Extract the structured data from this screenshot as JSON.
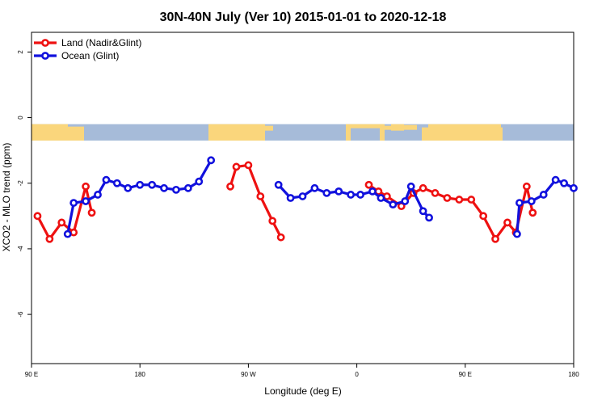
{
  "chart_data": {
    "type": "line",
    "title": "30N-40N July (Ver 10)   2015-01-01 to 2020-12-18",
    "xlabel": "Longitude (deg E)",
    "ylabel": "XCO2 - MLO trend (ppm)",
    "xlim": [
      90,
      540
    ],
    "ylim": [
      -7.5,
      2.6
    ],
    "x_ticks": [
      90,
      180,
      270,
      360,
      450,
      540
    ],
    "x_tick_labels": [
      "90 E",
      "180",
      "90 W",
      "0",
      "90 E",
      "180"
    ],
    "y_ticks": [
      2,
      0,
      -2,
      -4,
      -6
    ],
    "y_tick_labels": [
      "2",
      "0",
      "-2",
      "-4",
      "-6"
    ],
    "grid": false,
    "legend_position": "top-left",
    "map_strip": {
      "y_top": -0.2,
      "y_bottom": -0.7
    },
    "series": [
      {
        "name": "Land (Nadir&Glint)",
        "color": "#ee1111",
        "segments": [
          [
            [
              95,
              -3
            ],
            [
              105,
              -3.7
            ],
            [
              115,
              -3.2
            ],
            [
              125,
              -3.5
            ],
            [
              135,
              -2.1
            ],
            [
              140,
              -2.9
            ]
          ],
          [
            [
              255,
              -2.1
            ],
            [
              260,
              -1.5
            ],
            [
              270,
              -1.45
            ],
            [
              280,
              -2.4
            ],
            [
              290,
              -3.15
            ],
            [
              297,
              -3.65
            ]
          ],
          [
            [
              370,
              -2.05
            ],
            [
              378,
              -2.25
            ],
            [
              385,
              -2.4
            ],
            [
              397,
              -2.7
            ],
            [
              407,
              -2.3
            ],
            [
              415,
              -2.15
            ],
            [
              425,
              -2.3
            ],
            [
              435,
              -2.45
            ],
            [
              445,
              -2.5
            ],
            [
              455,
              -2.5
            ],
            [
              465,
              -3
            ],
            [
              475,
              -3.7
            ],
            [
              485,
              -3.2
            ],
            [
              492,
              -3.5
            ],
            [
              501,
              -2.1
            ],
            [
              506,
              -2.9
            ]
          ]
        ]
      },
      {
        "name": "Ocean (Glint)",
        "color": "#1111dd",
        "segments": [
          [
            [
              120,
              -3.55
            ],
            [
              125,
              -2.6
            ],
            [
              135,
              -2.55
            ],
            [
              145,
              -2.35
            ],
            [
              152,
              -1.9
            ],
            [
              161,
              -2
            ],
            [
              170,
              -2.15
            ],
            [
              180,
              -2.05
            ],
            [
              190,
              -2.05
            ],
            [
              200,
              -2.15
            ],
            [
              210,
              -2.2
            ],
            [
              220,
              -2.15
            ],
            [
              229,
              -1.95
            ],
            [
              239,
              -1.3
            ]
          ],
          [
            [
              295,
              -2.05
            ],
            [
              305,
              -2.45
            ],
            [
              315,
              -2.4
            ],
            [
              325,
              -2.15
            ],
            [
              335,
              -2.3
            ],
            [
              345,
              -2.25
            ],
            [
              355,
              -2.35
            ],
            [
              363,
              -2.35
            ],
            [
              373,
              -2.25
            ],
            [
              380,
              -2.45
            ],
            [
              390,
              -2.65
            ],
            [
              400,
              -2.55
            ],
            [
              405,
              -2.1
            ],
            [
              415,
              -2.85
            ],
            [
              420,
              -3.05
            ]
          ],
          [
            [
              493,
              -3.55
            ],
            [
              495,
              -2.6
            ],
            [
              505,
              -2.55
            ],
            [
              515,
              -2.35
            ],
            [
              525,
              -1.9
            ],
            [
              532,
              -2
            ],
            [
              540,
              -2.15
            ]
          ]
        ]
      }
    ]
  }
}
